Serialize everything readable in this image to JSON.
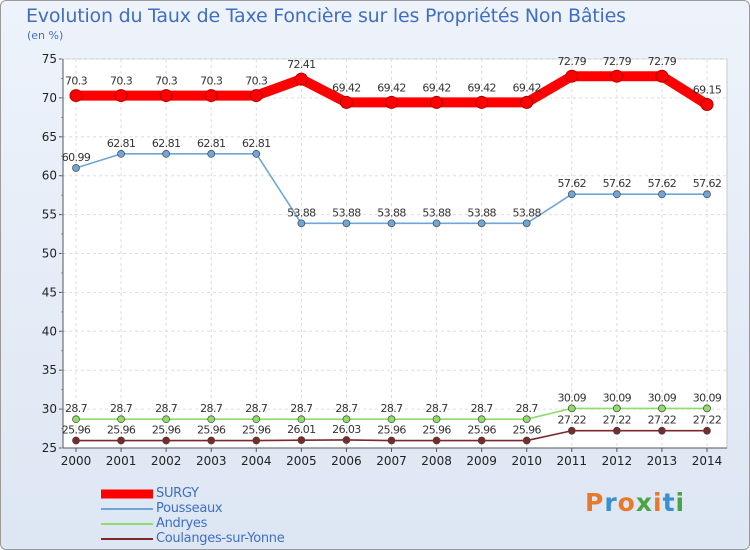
{
  "title": "Evolution du Taux de Taxe Foncière sur les Propriétés Non Bâties",
  "subtitle": "(en %)",
  "logo": {
    "text": "Proxiti",
    "colors": [
      "#e8792a",
      "#3b8fd0",
      "#e8792a",
      "#4aa344",
      "#e8792a",
      "#3b8fd0",
      "#4aa344"
    ]
  },
  "chart_data": {
    "type": "line",
    "title": "Evolution du Taux de Taxe Foncière sur les Propriétés Non Bâties",
    "ylabel": "(en %)",
    "xlabel": "",
    "categories": [
      "2000",
      "2001",
      "2002",
      "2003",
      "2004",
      "2005",
      "2006",
      "2007",
      "2008",
      "2009",
      "2010",
      "2011",
      "2012",
      "2013",
      "2014"
    ],
    "ylim": [
      25,
      75
    ],
    "yticks": [
      25,
      30,
      35,
      40,
      45,
      50,
      55,
      60,
      65,
      70,
      75
    ],
    "grid": true,
    "legend": "bottom-left",
    "series": [
      {
        "name": "SURGY",
        "color": "#ff0000",
        "bold": true,
        "values": [
          70.3,
          70.3,
          70.3,
          70.3,
          70.3,
          72.41,
          69.42,
          69.42,
          69.42,
          69.42,
          69.42,
          72.79,
          72.79,
          72.79,
          69.15
        ],
        "labels": [
          "70.3",
          "70.3",
          "70.3",
          "70.3",
          "70.3",
          "72.41",
          "69.42",
          "69.42",
          "69.42",
          "69.42",
          "69.42",
          "72.79",
          "72.79",
          "72.79",
          "69.15"
        ]
      },
      {
        "name": "Pousseaux",
        "color": "#6fa6d8",
        "bold": false,
        "values": [
          60.99,
          62.81,
          62.81,
          62.81,
          62.81,
          53.88,
          53.88,
          53.88,
          53.88,
          53.88,
          53.88,
          57.62,
          57.62,
          57.62,
          57.62
        ],
        "labels": [
          "60.99",
          "62.81",
          "62.81",
          "62.81",
          "62.81",
          "53.88",
          "53.88",
          "53.88",
          "53.88",
          "53.88",
          "53.88",
          "57.62",
          "57.62",
          "57.62",
          "57.62"
        ]
      },
      {
        "name": "Andryes",
        "color": "#8fdc6c",
        "bold": false,
        "values": [
          28.7,
          28.7,
          28.7,
          28.7,
          28.7,
          28.7,
          28.7,
          28.7,
          28.7,
          28.7,
          28.7,
          30.09,
          30.09,
          30.09,
          30.09
        ],
        "labels": [
          "28.7",
          "28.7",
          "28.7",
          "28.7",
          "28.7",
          "28.7",
          "28.7",
          "28.7",
          "28.7",
          "28.7",
          "28.7",
          "30.09",
          "30.09",
          "30.09",
          "30.09"
        ]
      },
      {
        "name": "Coulanges-sur-Yonne",
        "color": "#7a2a2a",
        "bold": false,
        "values": [
          25.96,
          25.96,
          25.96,
          25.96,
          25.96,
          26.01,
          26.03,
          25.96,
          25.96,
          25.96,
          25.96,
          27.22,
          27.22,
          27.22,
          27.22
        ],
        "labels": [
          "25.96",
          "25.96",
          "25.96",
          "25.96",
          "25.96",
          "26.01",
          "26.03",
          "25.96",
          "25.96",
          "25.96",
          "25.96",
          "27.22",
          "27.22",
          "27.22",
          "27.22"
        ]
      }
    ]
  }
}
